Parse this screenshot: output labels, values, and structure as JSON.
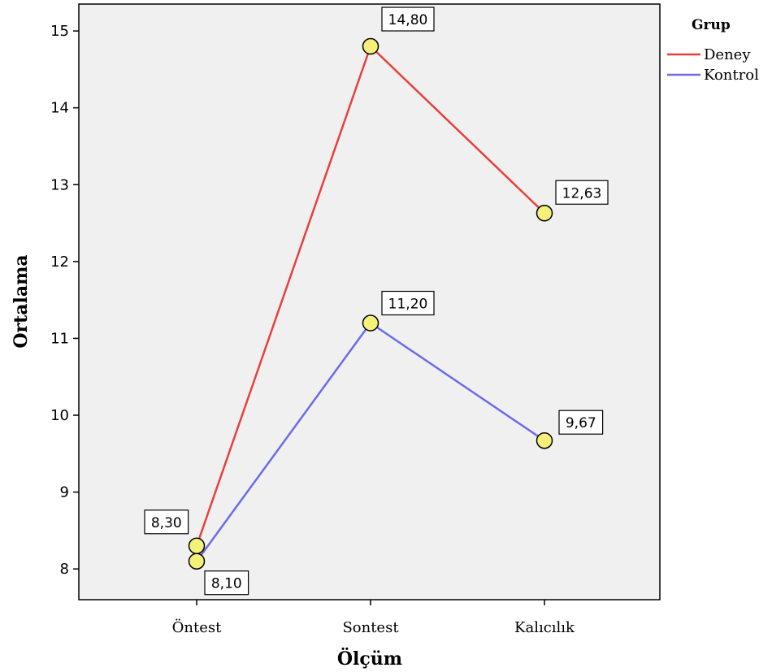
{
  "chart_data": {
    "type": "line",
    "categories": [
      "Öntest",
      "Sontest",
      "Kalıcılık"
    ],
    "series": [
      {
        "name": "Deney",
        "values": [
          8.3,
          14.8,
          12.63
        ],
        "labels": [
          "8,30",
          "14,80",
          "12,63"
        ],
        "color": "#e8403c"
      },
      {
        "name": "Kontrol",
        "values": [
          8.1,
          11.2,
          9.67
        ],
        "labels": [
          "8,10",
          "11,20",
          "9,67"
        ],
        "color": "#6b6bea"
      }
    ],
    "xlabel": "Ölçüm",
    "ylabel": "Ortalama",
    "ylim": [
      7.6,
      15.35
    ],
    "yticks": [
      8,
      9,
      10,
      11,
      12,
      13,
      14,
      15
    ],
    "legend_title": "Grup",
    "legend_position": "right",
    "grid": false,
    "plot_background": "#f0f0f0",
    "marker_color": "#f5f07a"
  }
}
